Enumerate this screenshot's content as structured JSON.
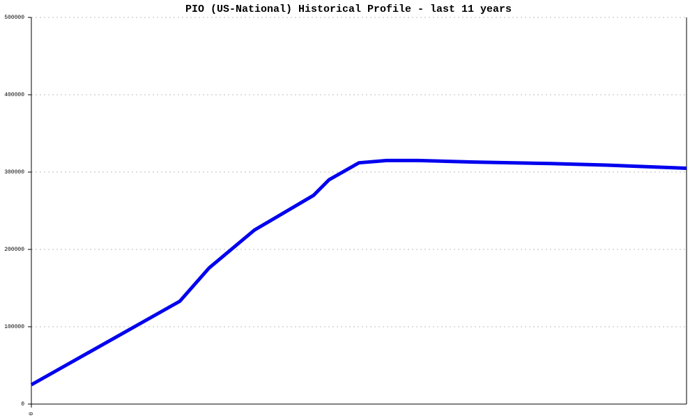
{
  "chart_data": {
    "type": "line",
    "title": "PIO (US-National) Historical Profile - last 11 years",
    "x": [
      0,
      213,
      255,
      320,
      405,
      427,
      470,
      510,
      555,
      635,
      745,
      825,
      940
    ],
    "series": [
      {
        "color": "#0000ee",
        "values": [
          25000,
          133000,
          176000,
          225000,
          270000,
          290000,
          312000,
          315000,
          315000,
          313000,
          311000,
          309000,
          305000
        ]
      }
    ],
    "xlim": [
      0,
      940
    ],
    "xticks": [
      0
    ],
    "ylim": [
      0,
      500000
    ],
    "yticks": [
      0,
      100000,
      200000,
      300000,
      400000,
      500000
    ],
    "grid": true
  }
}
